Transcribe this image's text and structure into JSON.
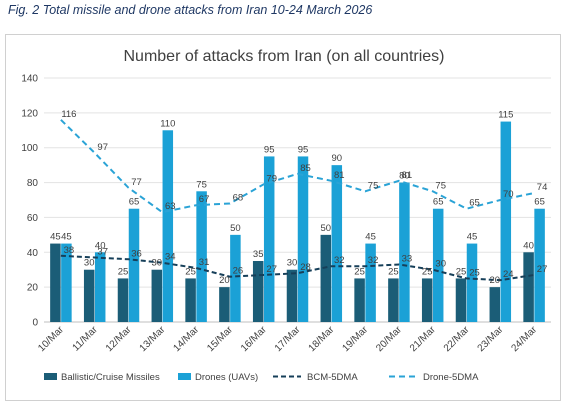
{
  "caption": "Fig. 2 Total missile and drone attacks from Iran 10-24 March 2026",
  "chart_data": {
    "type": "bar",
    "title": "Number of attacks from Iran (on all countries)",
    "categories": [
      "10/Mar",
      "11/Mar",
      "12/Mar",
      "13/Mar",
      "14/Mar",
      "15/Mar",
      "16/Mar",
      "17/Mar",
      "18/Mar",
      "19/Mar",
      "20/Mar",
      "21/Mar",
      "22/Mar",
      "23/Mar",
      "24/Mar"
    ],
    "ylim": [
      0,
      140
    ],
    "yticks": [
      0,
      20,
      40,
      60,
      80,
      100,
      120,
      140
    ],
    "grid": true,
    "legend_position": "bottom",
    "series": [
      {
        "name": "Ballistic/Cruise Missiles",
        "kind": "bar",
        "color": "#1b5d77",
        "values": [
          45,
          30,
          25,
          30,
          25,
          20,
          35,
          30,
          50,
          25,
          25,
          25,
          25,
          20,
          40
        ]
      },
      {
        "name": "Drones (UAVs)",
        "kind": "bar",
        "color": "#1ba1d6",
        "values": [
          45,
          40,
          65,
          110,
          75,
          50,
          95,
          95,
          90,
          45,
          80,
          65,
          45,
          115,
          65
        ]
      },
      {
        "name": "BCM-5DMA",
        "kind": "line",
        "dash": "dashed",
        "color": "#163f59",
        "values": [
          38,
          37,
          36,
          34,
          31,
          26,
          27,
          28,
          32,
          32,
          33,
          30,
          25,
          24,
          27
        ]
      },
      {
        "name": "Drone-5DMA",
        "kind": "line",
        "dash": "dashed",
        "color": "#2aa3d6",
        "values": [
          116,
          97,
          77,
          63,
          67,
          68,
          79,
          85,
          81,
          75,
          81,
          75,
          65,
          70,
          74
        ]
      }
    ]
  }
}
